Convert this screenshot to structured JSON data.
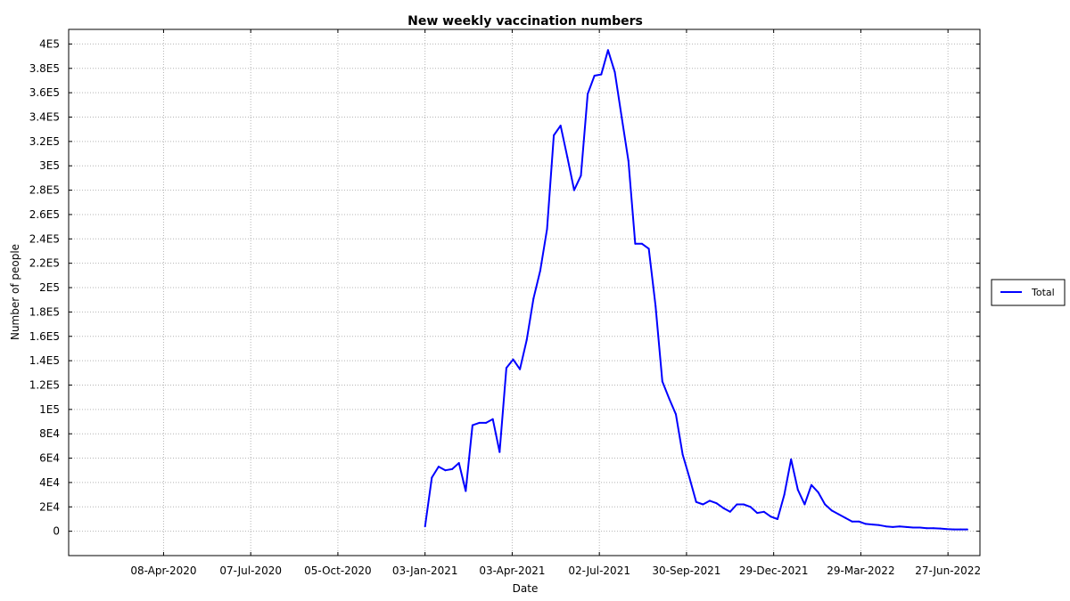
{
  "chart_data": {
    "type": "line",
    "title": "New weekly vaccination numbers",
    "xlabel": "Date",
    "ylabel": "Number of people",
    "xlim": [
      "2020-01-01",
      "2022-07-30"
    ],
    "ylim": [
      -20000,
      412000
    ],
    "x_ticks": [
      {
        "date": "2020-04-08",
        "label": "08-Apr-2020"
      },
      {
        "date": "2020-07-07",
        "label": "07-Jul-2020"
      },
      {
        "date": "2020-10-05",
        "label": "05-Oct-2020"
      },
      {
        "date": "2021-01-03",
        "label": "03-Jan-2021"
      },
      {
        "date": "2021-04-03",
        "label": "03-Apr-2021"
      },
      {
        "date": "2021-07-02",
        "label": "02-Jul-2021"
      },
      {
        "date": "2021-09-30",
        "label": "30-Sep-2021"
      },
      {
        "date": "2021-12-29",
        "label": "29-Dec-2021"
      },
      {
        "date": "2022-03-29",
        "label": "29-Mar-2022"
      },
      {
        "date": "2022-06-27",
        "label": "27-Jun-2022"
      }
    ],
    "y_ticks": [
      {
        "value": 0,
        "label": "0"
      },
      {
        "value": 20000,
        "label": "2E4"
      },
      {
        "value": 40000,
        "label": "4E4"
      },
      {
        "value": 60000,
        "label": "6E4"
      },
      {
        "value": 80000,
        "label": "8E4"
      },
      {
        "value": 100000,
        "label": "1E5"
      },
      {
        "value": 120000,
        "label": "1.2E5"
      },
      {
        "value": 140000,
        "label": "1.4E5"
      },
      {
        "value": 160000,
        "label": "1.6E5"
      },
      {
        "value": 180000,
        "label": "1.8E5"
      },
      {
        "value": 200000,
        "label": "2E5"
      },
      {
        "value": 220000,
        "label": "2.2E5"
      },
      {
        "value": 240000,
        "label": "2.4E5"
      },
      {
        "value": 260000,
        "label": "2.6E5"
      },
      {
        "value": 280000,
        "label": "2.8E5"
      },
      {
        "value": 300000,
        "label": "3E5"
      },
      {
        "value": 320000,
        "label": "3.2E5"
      },
      {
        "value": 340000,
        "label": "3.4E5"
      },
      {
        "value": 360000,
        "label": "3.6E5"
      },
      {
        "value": 380000,
        "label": "3.8E5"
      },
      {
        "value": 400000,
        "label": "4E5"
      }
    ],
    "grid": true,
    "legend_position": "right",
    "series": [
      {
        "name": "Total",
        "color": "#0000ff",
        "x": [
          "2021-01-03",
          "2021-01-10",
          "2021-01-17",
          "2021-01-24",
          "2021-01-31",
          "2021-02-07",
          "2021-02-14",
          "2021-02-21",
          "2021-02-28",
          "2021-03-07",
          "2021-03-14",
          "2021-03-21",
          "2021-03-28",
          "2021-04-04",
          "2021-04-11",
          "2021-04-18",
          "2021-04-25",
          "2021-05-02",
          "2021-05-09",
          "2021-05-16",
          "2021-05-23",
          "2021-05-30",
          "2021-06-06",
          "2021-06-13",
          "2021-06-20",
          "2021-06-27",
          "2021-07-04",
          "2021-07-11",
          "2021-07-18",
          "2021-07-25",
          "2021-08-01",
          "2021-08-08",
          "2021-08-15",
          "2021-08-22",
          "2021-08-29",
          "2021-09-05",
          "2021-09-12",
          "2021-09-19",
          "2021-09-26",
          "2021-10-03",
          "2021-10-10",
          "2021-10-17",
          "2021-10-24",
          "2021-10-31",
          "2021-11-07",
          "2021-11-14",
          "2021-11-21",
          "2021-11-28",
          "2021-12-05",
          "2021-12-12",
          "2021-12-19",
          "2021-12-26",
          "2022-01-02",
          "2022-01-09",
          "2022-01-16",
          "2022-01-23",
          "2022-01-30",
          "2022-02-06",
          "2022-02-13",
          "2022-02-20",
          "2022-02-27",
          "2022-03-06",
          "2022-03-13",
          "2022-03-20",
          "2022-03-27",
          "2022-04-03",
          "2022-04-10",
          "2022-04-17",
          "2022-04-24",
          "2022-05-01",
          "2022-05-08",
          "2022-05-15",
          "2022-05-22",
          "2022-05-29",
          "2022-06-05",
          "2022-06-12",
          "2022-06-19",
          "2022-06-26",
          "2022-07-03",
          "2022-07-10",
          "2022-07-17"
        ],
        "values": [
          4000,
          44000,
          53000,
          50000,
          51000,
          56000,
          33000,
          87000,
          89000,
          89000,
          92000,
          65000,
          134000,
          141000,
          133000,
          157000,
          191000,
          214000,
          248000,
          325000,
          333000,
          307000,
          280000,
          292000,
          359000,
          374000,
          375000,
          395000,
          377000,
          340000,
          304000,
          236000,
          236000,
          232000,
          185000,
          123000,
          109000,
          96000,
          63000,
          44000,
          24000,
          22000,
          25000,
          23000,
          19000,
          16000,
          22000,
          22000,
          20000,
          15000,
          16000,
          12000,
          10000,
          30000,
          59000,
          34000,
          22000,
          38000,
          32000,
          22000,
          17000,
          14000,
          11000,
          8000,
          8000,
          6000,
          5500,
          5000,
          4000,
          3500,
          4000,
          3500,
          3000,
          3000,
          2500,
          2500,
          2200,
          1800,
          1500,
          1500,
          1500
        ]
      }
    ]
  }
}
